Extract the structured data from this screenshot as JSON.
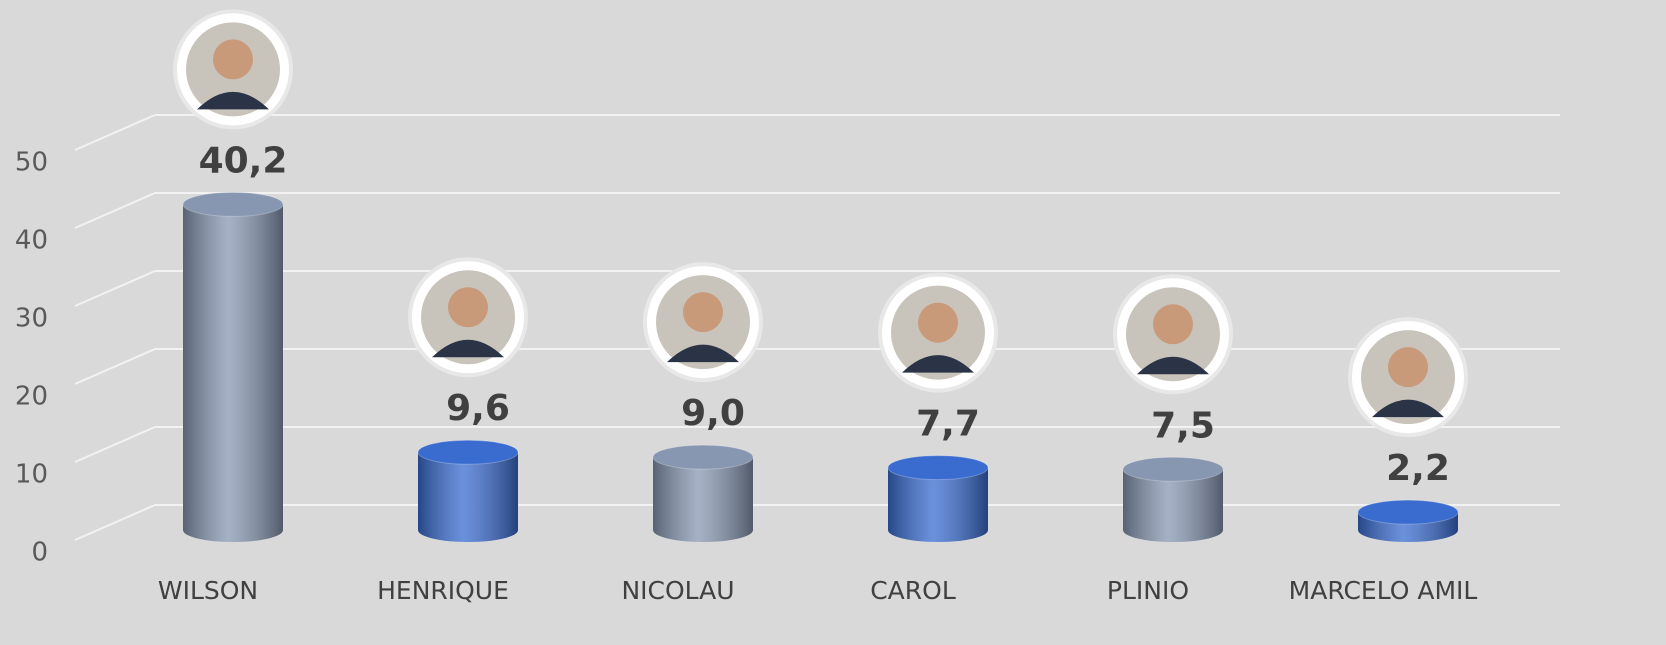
{
  "chart_data": {
    "type": "bar",
    "categories": [
      "WILSON",
      "HENRIQUE",
      "NICOLAU",
      "CAROL",
      "PLINIO",
      "MARCELO AMIL"
    ],
    "values": [
      40.2,
      9.6,
      9.0,
      7.7,
      7.5,
      2.2
    ],
    "value_labels": [
      "40,2",
      "9,6",
      "9,0",
      "7,7",
      "7,5",
      "2,2"
    ],
    "colors": [
      "#8797b2",
      "#3a6cd0",
      "#8797b2",
      "#3a6cd0",
      "#8797b2",
      "#3a6cd0"
    ],
    "ylim": [
      0,
      50
    ],
    "yticks": [
      0,
      10,
      20,
      30,
      40,
      50
    ],
    "grid": true
  }
}
